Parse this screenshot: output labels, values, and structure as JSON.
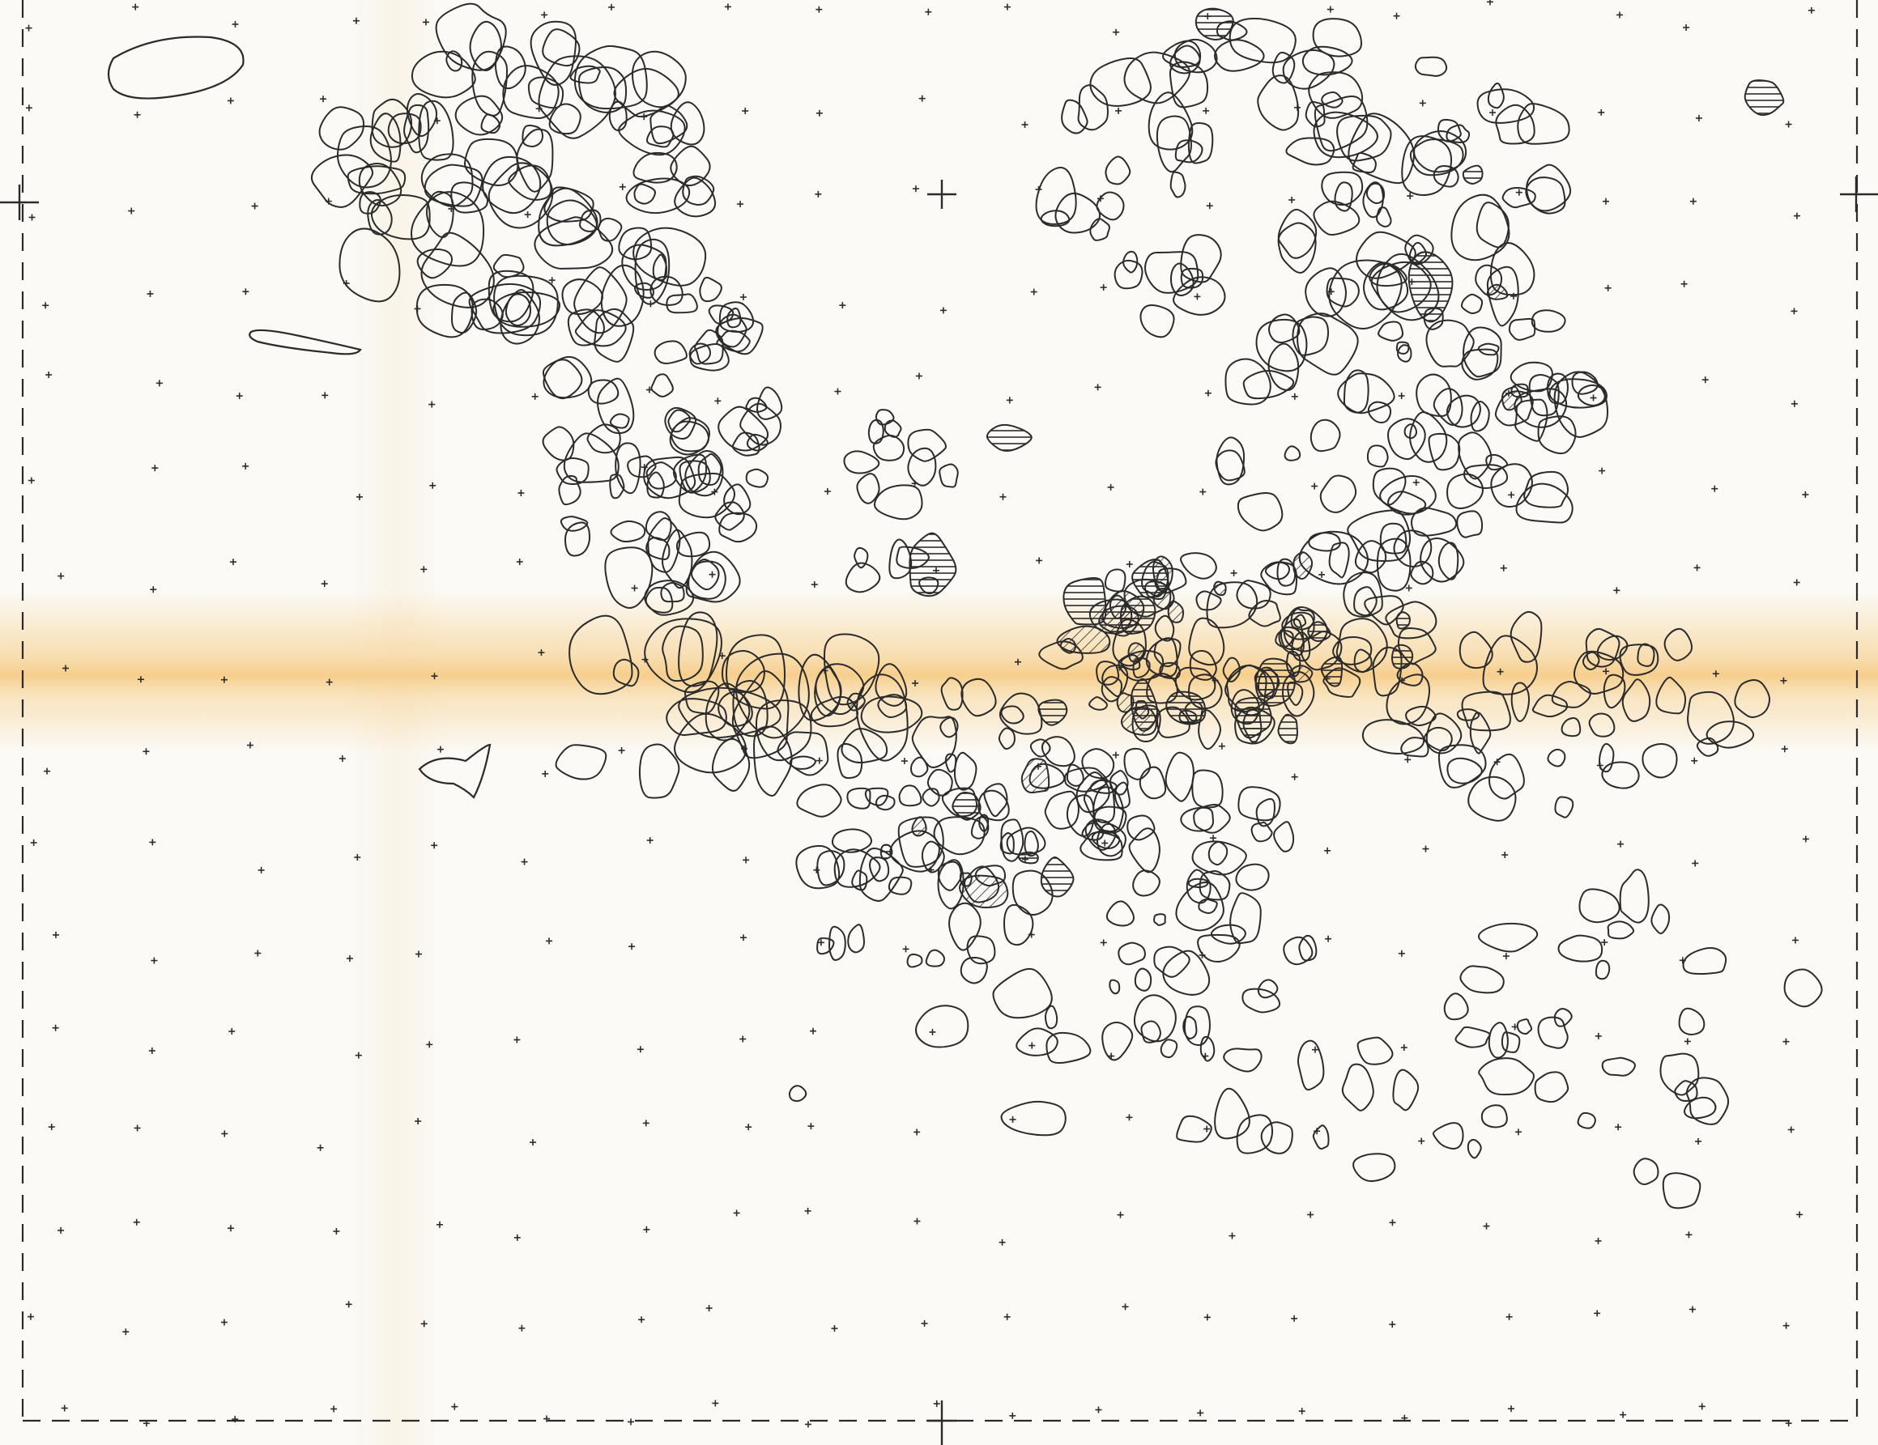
{
  "colors": {
    "paper": "#fbfaf6",
    "ink": "#2b2b2b",
    "fold_stain": "#f6c87a"
  },
  "symbols": {
    "grid_point": "plus-icon",
    "stone": "outline",
    "stone_hatched": "horizontal-hatch",
    "stone_cross_hatched": "diagonal-hatch"
  }
}
